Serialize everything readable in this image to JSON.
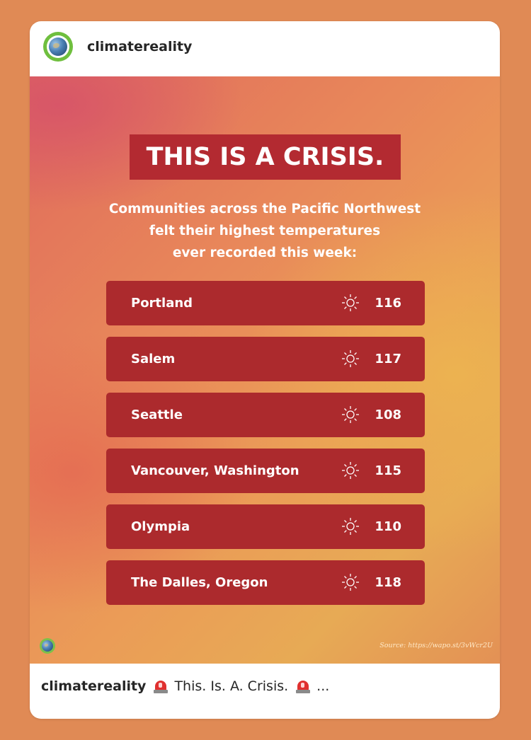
{
  "account": {
    "username": "climatereality",
    "avatar_icon": "earth-icon",
    "avatar_ring_color": "#6fbf3e"
  },
  "post": {
    "banner": "THIS IS A CRISIS.",
    "banner_color": "#b32a31",
    "subtitle_lines": [
      "Communities across the Pacific Northwest",
      "felt their highest temperatures",
      "ever recorded this week:"
    ],
    "row_color": "#ac2a2d",
    "rows": [
      {
        "city": "Portland",
        "icon": "sun-icon",
        "temp": "116"
      },
      {
        "city": "Salem",
        "icon": "sun-icon",
        "temp": "117"
      },
      {
        "city": "Seattle",
        "icon": "sun-icon",
        "temp": "108"
      },
      {
        "city": "Vancouver, Washington",
        "icon": "sun-icon",
        "temp": "115"
      },
      {
        "city": "Olympia",
        "icon": "sun-icon",
        "temp": "110"
      },
      {
        "city": "The Dalles, Oregon",
        "icon": "sun-icon",
        "temp": "118"
      }
    ],
    "source": "Source: https://wapo.st/3vWcr2U"
  },
  "caption": {
    "username": "climatereality",
    "text": "This. Is. A. Crisis.",
    "emoji": "police-light-icon",
    "more": "..."
  }
}
